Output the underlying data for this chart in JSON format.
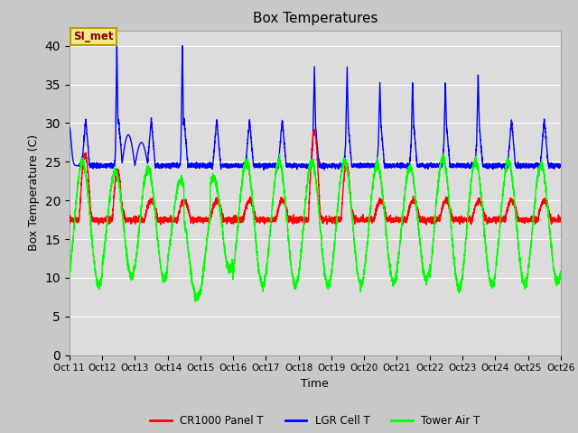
{
  "title": "Box Temperatures",
  "xlabel": "Time",
  "ylabel": "Box Temperature (C)",
  "ylim": [
    0,
    42
  ],
  "yticks": [
    0,
    5,
    10,
    15,
    20,
    25,
    30,
    35,
    40
  ],
  "xtick_labels": [
    "Oct 11",
    "Oct 12",
    "Oct 13",
    "Oct 14",
    "Oct 15",
    "Oct 16",
    "Oct 17",
    "Oct 18",
    "Oct 19",
    "Oct 20",
    "Oct 21",
    "Oct 22",
    "Oct 23",
    "Oct 24",
    "Oct 25",
    "Oct 26"
  ],
  "bg_color": "#dcdcdc",
  "fig_color": "#c8c8c8",
  "annotation_text": "SI_met",
  "series": {
    "cr1000": {
      "label": "CR1000 Panel T",
      "color": "red"
    },
    "lgr": {
      "label": "LGR Cell T",
      "color": "blue"
    },
    "tower": {
      "label": "Tower Air T",
      "color": "lime"
    }
  },
  "linewidth": 1.0
}
